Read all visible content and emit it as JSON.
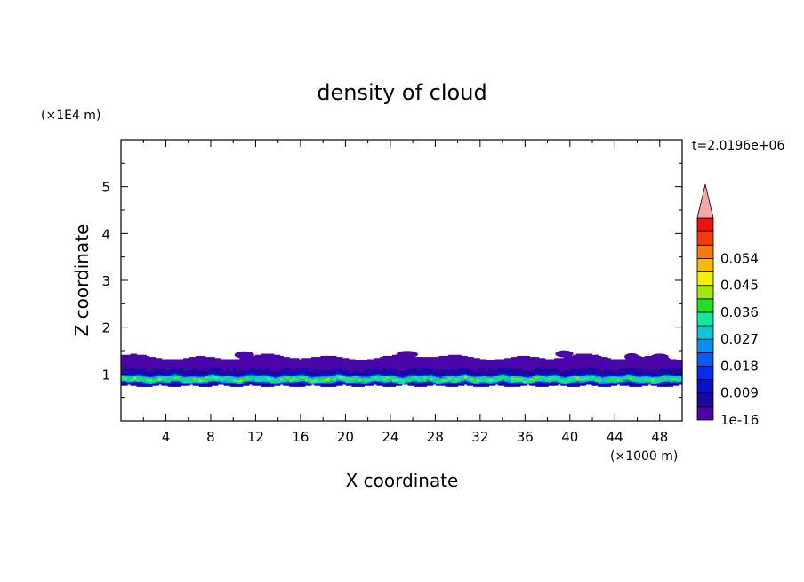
{
  "chart_data": {
    "type": "heatmap",
    "title": "density of cloud",
    "xlabel": "X coordinate",
    "ylabel": "Z coordinate",
    "x_unit": "(×1000 m)",
    "y_unit": "(×1E4 m)",
    "time_label": "t=2.0196e+06",
    "xlim": [
      0,
      50
    ],
    "ylim": [
      0,
      6
    ],
    "x_ticks": [
      4,
      8,
      12,
      16,
      20,
      24,
      28,
      32,
      36,
      40,
      44,
      48
    ],
    "y_ticks": [
      1,
      2,
      3,
      4,
      5
    ],
    "x_tick_labels": [
      "4",
      "8",
      "12",
      "16",
      "20",
      "24",
      "28",
      "32",
      "36",
      "40",
      "44",
      "48"
    ],
    "y_tick_labels": [
      "1",
      "2",
      "3",
      "4",
      "5"
    ],
    "colorbar": {
      "levels": [
        1e-16,
        0.0045,
        0.009,
        0.0135,
        0.018,
        0.0225,
        0.027,
        0.0315,
        0.036,
        0.0405,
        0.045,
        0.0495,
        0.054,
        0.0585,
        0.063
      ],
      "labels": [
        "1e-16",
        "0.009",
        "0.018",
        "0.027",
        "0.036",
        "0.045",
        "0.054"
      ],
      "label_levels": [
        1e-16,
        0.009,
        0.018,
        0.027,
        0.036,
        0.045,
        0.054
      ],
      "colors": [
        "#4a06a8",
        "#1c08a0",
        "#0d10c8",
        "#0a2ee8",
        "#0a5cf0",
        "#0a8ef0",
        "#08c8d8",
        "#10e8a0",
        "#20e020",
        "#a0e810",
        "#f0f008",
        "#f8b808",
        "#f87808",
        "#f83a08",
        "#f01010"
      ],
      "overflow_color": "#f4a8a8",
      "extend": "max"
    },
    "cloud_layer": {
      "base_z": 0.75,
      "top_z": 1.4,
      "core_z": [
        0.82,
        0.98
      ],
      "peak_density": 0.04
    }
  }
}
